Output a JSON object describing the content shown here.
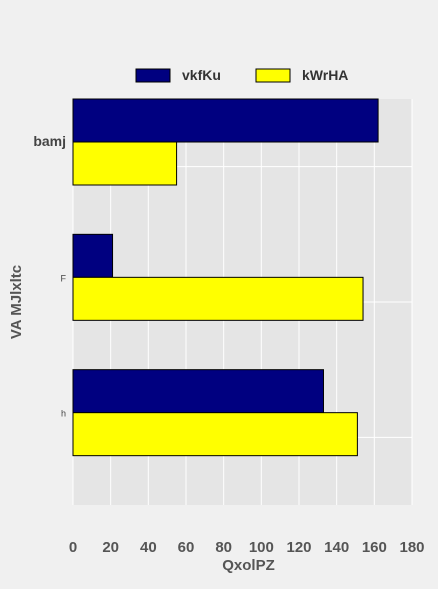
{
  "chart_data": {
    "type": "bar",
    "orientation": "horizontal",
    "categories": [
      "bamj",
      "F",
      "h"
    ],
    "series": [
      {
        "name": "vkfKu",
        "values": [
          162,
          21,
          133
        ],
        "color": "#000080"
      },
      {
        "name": "kWrHA",
        "values": [
          55,
          154,
          151
        ],
        "color": "#ffff00"
      }
    ],
    "xlabel": "QxolPZ",
    "ylabel": "VA MJlxltc",
    "xlim": [
      0,
      180
    ],
    "xticks": [
      0,
      20,
      40,
      60,
      80,
      100,
      120,
      140,
      160,
      180
    ],
    "grid": true,
    "legend_position": "top"
  },
  "colors": {
    "background": "#f0f0f0",
    "plot_background": "#e5e5e5",
    "grid": "#ffffff",
    "text": "#555555"
  }
}
